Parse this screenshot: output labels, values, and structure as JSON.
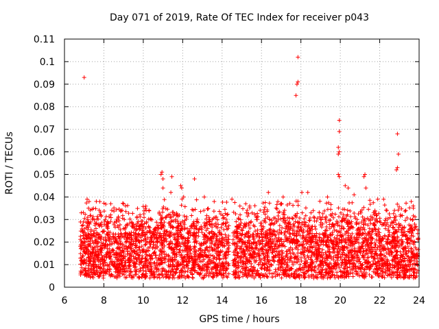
{
  "chart_data": {
    "type": "scatter",
    "title": "Day 071 of 2019, Rate Of TEC Index for receiver p043",
    "xlabel": "GPS time / hours",
    "ylabel": "ROTI / TECUs",
    "xlim": [
      6,
      24
    ],
    "ylim": [
      0,
      0.11
    ],
    "x_ticks": [
      "6",
      "8",
      "10",
      "12",
      "14",
      "16",
      "18",
      "20",
      "22",
      "24"
    ],
    "y_ticks": [
      "0",
      "0.01",
      "0.02",
      "0.03",
      "0.04",
      "0.05",
      "0.06",
      "0.07",
      "0.08",
      "0.09",
      "0.1",
      "0.11"
    ],
    "grid": true,
    "marker": "+",
    "series": [
      {
        "name": "ROTI",
        "color": "#ff0000",
        "points": [
          [
            7.0,
            0.093
          ],
          [
            17.85,
            0.102
          ],
          [
            17.85,
            0.091
          ],
          [
            17.8,
            0.09
          ],
          [
            17.75,
            0.085
          ],
          [
            19.95,
            0.074
          ],
          [
            19.95,
            0.069
          ],
          [
            19.9,
            0.062
          ],
          [
            19.95,
            0.06
          ],
          [
            19.9,
            0.059
          ],
          [
            19.9,
            0.05
          ],
          [
            19.95,
            0.049
          ],
          [
            22.9,
            0.068
          ],
          [
            22.95,
            0.059
          ],
          [
            22.9,
            0.053
          ],
          [
            22.85,
            0.052
          ],
          [
            10.95,
            0.051
          ],
          [
            10.9,
            0.05
          ],
          [
            11.0,
            0.048
          ],
          [
            11.45,
            0.049
          ],
          [
            11.9,
            0.045
          ],
          [
            11.95,
            0.044
          ],
          [
            12.6,
            0.048
          ],
          [
            11.0,
            0.044
          ],
          [
            21.2,
            0.049
          ],
          [
            21.25,
            0.05
          ],
          [
            21.3,
            0.044
          ],
          [
            20.25,
            0.045
          ],
          [
            20.4,
            0.044
          ],
          [
            7.15,
            0.039
          ],
          [
            7.25,
            0.038
          ],
          [
            8.35,
            0.037
          ],
          [
            9.0,
            0.037
          ],
          [
            9.1,
            0.036
          ],
          [
            13.1,
            0.04
          ],
          [
            13.6,
            0.038
          ],
          [
            14.5,
            0.039
          ],
          [
            16.35,
            0.042
          ],
          [
            17.1,
            0.04
          ],
          [
            18.35,
            0.042
          ],
          [
            18.05,
            0.042
          ],
          [
            21.9,
            0.039
          ],
          [
            22.2,
            0.039
          ],
          [
            20.7,
            0.041
          ],
          [
            23.6,
            0.038
          ],
          [
            23.7,
            0.036
          ],
          [
            15.2,
            0.037
          ],
          [
            12.05,
            0.04
          ],
          [
            11.4,
            0.042
          ],
          [
            19.35,
            0.04
          ]
        ],
        "cloud": {
          "x_from": 6.8,
          "x_to": 23.95,
          "y_base_min": 0.004,
          "y_base_max": 0.024,
          "y_spike_max": 0.04,
          "count": 4200
        }
      }
    ]
  }
}
